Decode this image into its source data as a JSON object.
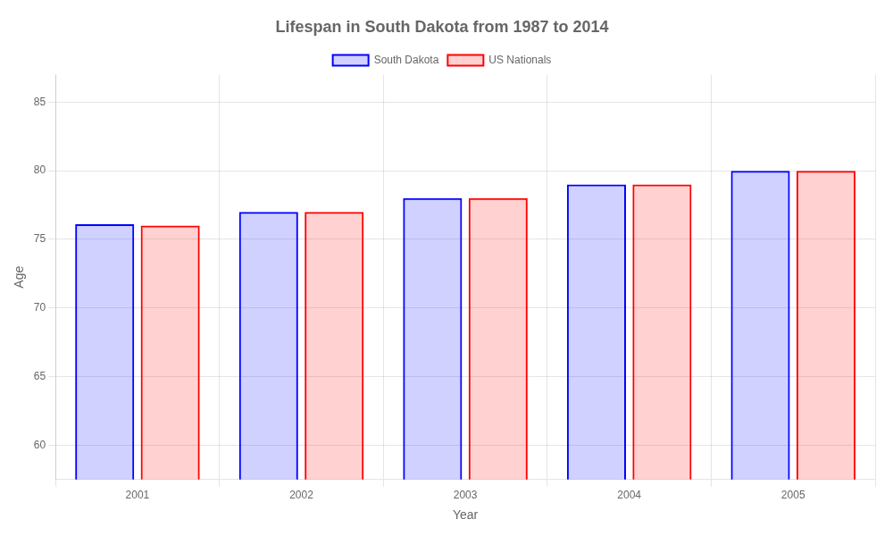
{
  "chart_data": {
    "type": "bar",
    "title": "Lifespan in South Dakota from 1987 to 2014",
    "xlabel": "Year",
    "ylabel": "Age",
    "categories": [
      "2001",
      "2002",
      "2003",
      "2004",
      "2005"
    ],
    "series": [
      {
        "name": "South Dakota",
        "color": "#0000ff",
        "values": [
          76.1,
          77.0,
          78.0,
          79.0,
          80.0
        ]
      },
      {
        "name": "US Nationals",
        "color": "#ff0000",
        "values": [
          76.0,
          77.0,
          78.0,
          79.0,
          80.0
        ]
      }
    ],
    "ylim": [
      57.5,
      87
    ],
    "yticks": [
      60,
      65,
      70,
      75,
      80,
      85
    ],
    "grid": true,
    "legend": "top"
  }
}
